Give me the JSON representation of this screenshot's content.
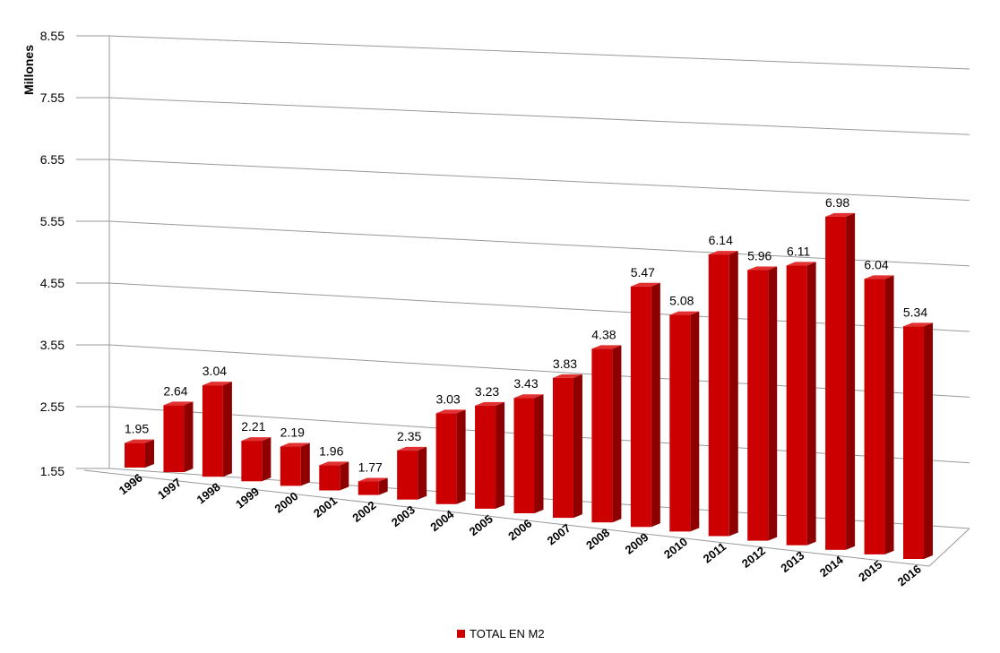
{
  "chart_data": {
    "type": "bar",
    "ylabel": "Millones",
    "yticks": [
      "1.55",
      "2.55",
      "3.55",
      "4.55",
      "5.55",
      "6.55",
      "7.55",
      "8.55"
    ],
    "ylim": [
      1.55,
      8.55
    ],
    "categories": [
      "1996",
      "1997",
      "1998",
      "1999",
      "2000",
      "2001",
      "2002",
      "2003",
      "2004",
      "2005",
      "2006",
      "2007",
      "2008",
      "2009",
      "2010",
      "2011",
      "2012",
      "2013",
      "2014",
      "2015",
      "2016"
    ],
    "series": [
      {
        "name": "TOTAL EN M2",
        "values": [
          1.95,
          2.64,
          3.04,
          2.21,
          2.19,
          1.96,
          1.77,
          2.35,
          3.03,
          3.23,
          3.43,
          3.83,
          4.38,
          5.47,
          5.08,
          6.14,
          5.96,
          6.11,
          6.98,
          6.04,
          5.34
        ],
        "data_labels": [
          "1.95",
          "2.64",
          "3.04",
          "2.21",
          "2.19",
          "1.96",
          "1.77",
          "2.35",
          "3.03",
          "3.23",
          "3.43",
          "3.83",
          "4.38",
          "5.47",
          "5.08",
          "6.14",
          "5.96",
          "6.11",
          "6.98",
          "6.04",
          "5.34"
        ],
        "color": "#cc0000"
      }
    ],
    "grid": true,
    "legend_position": "bottom",
    "style": "3d-bar"
  }
}
